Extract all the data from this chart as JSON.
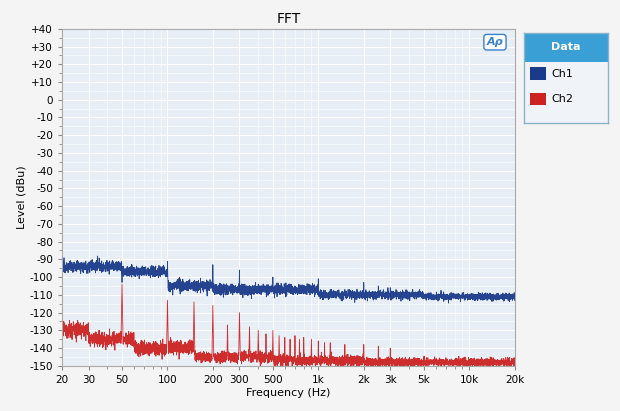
{
  "title": "FFT",
  "xlabel": "Frequency (Hz)",
  "ylabel": "Level (dBu)",
  "ylim": [
    -150,
    40
  ],
  "yticks": [
    40,
    30,
    20,
    10,
    0,
    -10,
    -20,
    -30,
    -40,
    -50,
    -60,
    -70,
    -80,
    -90,
    -100,
    -110,
    -120,
    -130,
    -140,
    -150
  ],
  "ytick_labels": [
    "+40",
    "+30",
    "+20",
    "+10",
    "0",
    "-10",
    "-20",
    "-30",
    "-40",
    "-50",
    "-60",
    "-70",
    "-80",
    "-90",
    "-100",
    "-110",
    "-120",
    "-130",
    "-140",
    "-150"
  ],
  "xmin": 20,
  "xmax": 20000,
  "xtick_positions": [
    20,
    30,
    50,
    100,
    200,
    300,
    500,
    1000,
    2000,
    3000,
    5000,
    10000,
    20000
  ],
  "xtick_labels": [
    "20",
    "30",
    "50",
    "100",
    "200",
    "300",
    "500",
    "1k",
    "2k",
    "3k",
    "5k",
    "10k",
    "20k"
  ],
  "ch1_color": "#1a3a8a",
  "ch2_color": "#cc2222",
  "plot_bg_color": "#e8eef5",
  "fig_bg_color": "#f4f4f4",
  "grid_color": "#ffffff",
  "legend_header_color": "#3a9fd4",
  "legend_bg": "#f0f4f8",
  "title_fontsize": 10,
  "axis_fontsize": 8,
  "tick_fontsize": 7.5
}
